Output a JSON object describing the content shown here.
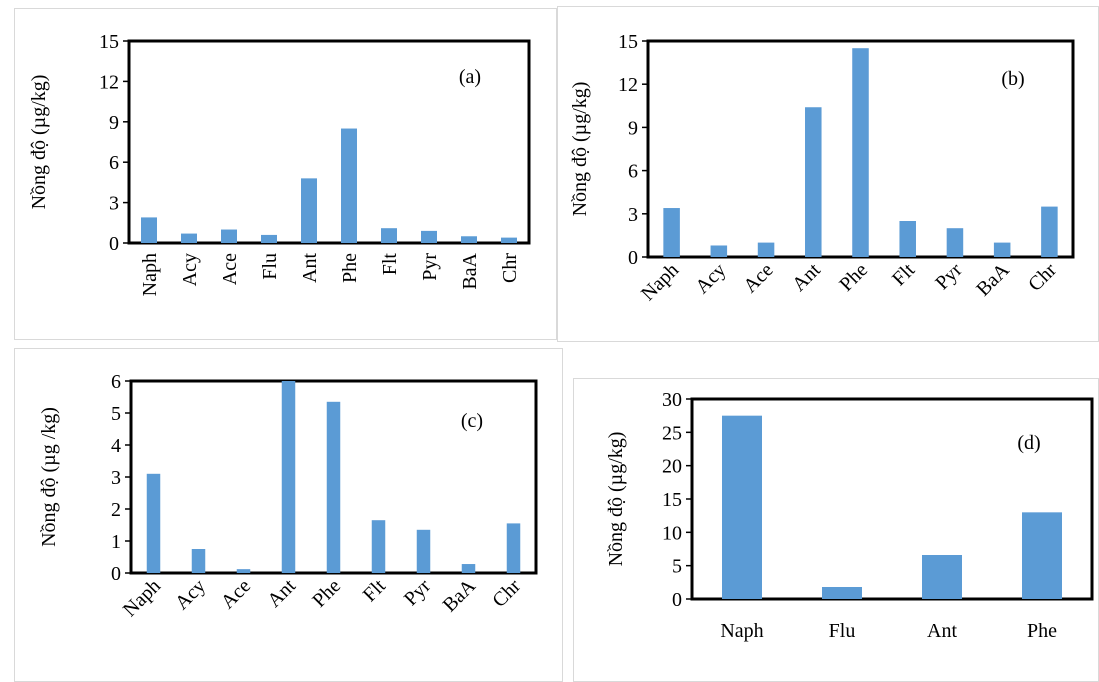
{
  "bar_color": "#5b9bd5",
  "chart_data": [
    {
      "type": "bar",
      "ylabel": "Nồng độ (µg/kg)",
      "annotation": "(a)",
      "ylim": [
        0,
        15
      ],
      "yticks": [
        0,
        3,
        6,
        9,
        12,
        15
      ],
      "categories": [
        "Naph",
        "Acy",
        "Ace",
        "Flu",
        "Ant",
        "Phe",
        "Flt",
        "Pyr",
        "BaA",
        "Chr"
      ],
      "values": [
        1.9,
        0.7,
        1.0,
        0.6,
        4.8,
        8.5,
        1.1,
        0.9,
        0.5,
        0.4
      ],
      "grid": false
    },
    {
      "type": "bar",
      "ylabel": "Nồng độ (µg/kg)",
      "annotation": "(b)",
      "ylim": [
        0,
        15
      ],
      "yticks": [
        0,
        3,
        6,
        9,
        12,
        15
      ],
      "categories": [
        "Naph",
        "Acy",
        "Ace",
        "Ant",
        "Phe",
        "Flt",
        "Pyr",
        "BaA",
        "Chr"
      ],
      "values": [
        3.4,
        0.8,
        1.0,
        10.4,
        14.5,
        2.5,
        2.0,
        1.0,
        3.5
      ],
      "grid": false
    },
    {
      "type": "bar",
      "ylabel": "Nồng độ (µg /kg)",
      "annotation": "(c)",
      "ylim": [
        0,
        6
      ],
      "yticks": [
        0,
        1,
        2,
        3,
        4,
        5,
        6
      ],
      "categories": [
        "Naph",
        "Acy",
        "Ace",
        "Ant",
        "Phe",
        "Flt",
        "Pyr",
        "BaA",
        "Chr"
      ],
      "values": [
        3.1,
        0.75,
        0.12,
        6.0,
        5.35,
        1.65,
        1.35,
        0.28,
        1.55
      ],
      "grid": false
    },
    {
      "type": "bar",
      "ylabel": "Nồng độ (µg/kg)",
      "annotation": "(d)",
      "ylim": [
        0,
        30
      ],
      "yticks": [
        0,
        5,
        10,
        15,
        20,
        25,
        30
      ],
      "categories": [
        "Naph",
        "Flu",
        "Ant",
        "Phe"
      ],
      "values": [
        27.5,
        1.8,
        6.6,
        13.0
      ],
      "grid": false
    }
  ]
}
